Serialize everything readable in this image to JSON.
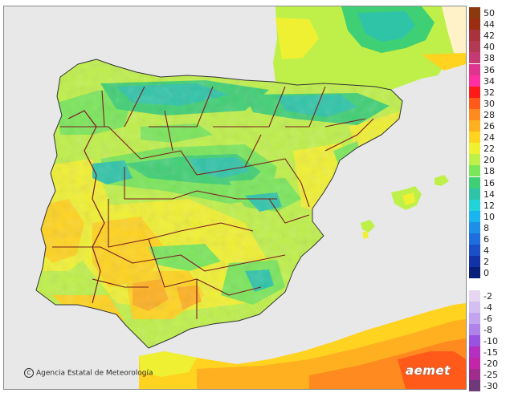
{
  "map": {
    "credit": "Agencia Estatal de Meteorología",
    "credit_symbol": "C",
    "brand": "aemet"
  },
  "legend": {
    "items": [
      {
        "label": "50",
        "color": "#8b3a0f"
      },
      {
        "label": "44",
        "color": "#9a2d12"
      },
      {
        "label": "42",
        "color": "#a8333d"
      },
      {
        "label": "40",
        "color": "#b23a55"
      },
      {
        "label": "38",
        "color": "#c43a72"
      },
      {
        "label": "36",
        "color": "#e0358e"
      },
      {
        "label": "34",
        "color": "#ff2fa0"
      },
      {
        "label": "32",
        "color": "#ff1a1a"
      },
      {
        "label": "30",
        "color": "#ff5a1a"
      },
      {
        "label": "28",
        "color": "#ff8a1f"
      },
      {
        "label": "26",
        "color": "#ffb020"
      },
      {
        "label": "24",
        "color": "#ffd31f"
      },
      {
        "label": "22",
        "color": "#f0f032"
      },
      {
        "label": "20",
        "color": "#bff04a"
      },
      {
        "label": "18",
        "color": "#7ae65a"
      },
      {
        "label": "16",
        "color": "#3fcf74"
      },
      {
        "label": "14",
        "color": "#2fc4a8"
      },
      {
        "label": "12",
        "color": "#22d3d8"
      },
      {
        "label": "10",
        "color": "#1ab4f0"
      },
      {
        "label": "8",
        "color": "#1c8fe8"
      },
      {
        "label": "6",
        "color": "#1e6ee0"
      },
      {
        "label": "4",
        "color": "#1a4fc8"
      },
      {
        "label": "2",
        "color": "#1233a8"
      },
      {
        "label": "0",
        "color": "#0a1f7a"
      },
      {
        "label": "",
        "color": "#ffffff"
      },
      {
        "label": "-2",
        "color": "#e6d6f2"
      },
      {
        "label": "-4",
        "color": "#d5bff0"
      },
      {
        "label": "-6",
        "color": "#c3a4ee"
      },
      {
        "label": "-8",
        "color": "#b083ea"
      },
      {
        "label": "-10",
        "color": "#9a52e0"
      },
      {
        "label": "-15",
        "color": "#b52fc0"
      },
      {
        "label": "-20",
        "color": "#c026a6"
      },
      {
        "label": "-25",
        "color": "#a02c8e"
      },
      {
        "label": "-30",
        "color": "#6e3a7a"
      }
    ]
  }
}
